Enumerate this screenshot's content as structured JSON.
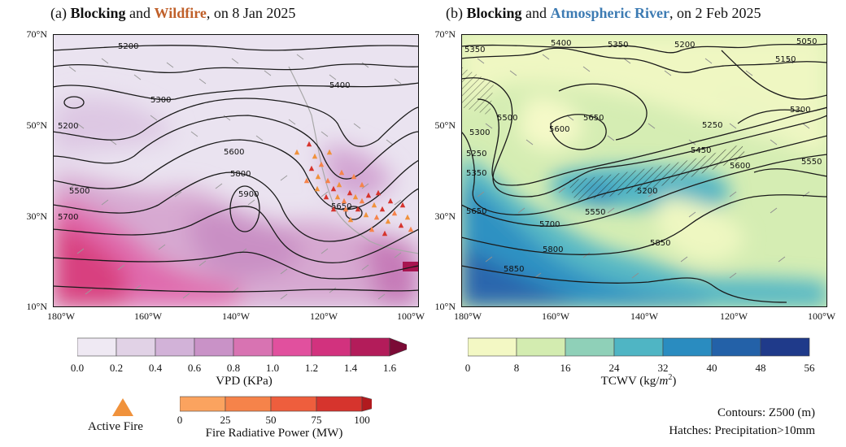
{
  "panel_a": {
    "prefix": "(a) ",
    "kw1": "Blocking",
    "mid": " and ",
    "kw2": "Wildfire",
    "suffix": ", on 8 Jan 2025",
    "kw2_color": "#c0602a"
  },
  "panel_b": {
    "prefix": "(b) ",
    "kw1": "Blocking",
    "mid": " and ",
    "kw2": "Atmospheric River",
    "suffix": ", on 2 Feb 2025",
    "kw2_color": "#3d7bb3"
  },
  "lat_labels": [
    "70°N",
    "50°N",
    "30°N",
    "10°N"
  ],
  "lon_labels": [
    "180°W",
    "160°W",
    "140°W",
    "120°W",
    "100°W"
  ],
  "contours_a": [
    "5200",
    "5300",
    "5400",
    "5500",
    "5600",
    "5700",
    "5800",
    "5900",
    "5200",
    "5650"
  ],
  "contours_b": [
    "5350",
    "5400",
    "5350",
    "5200",
    "5050",
    "5150",
    "5300",
    "5250",
    "5450",
    "5600",
    "5550",
    "5650",
    "5700",
    "5800",
    "5850",
    "5550",
    "5850",
    "5600",
    "5300",
    "5250",
    "5350",
    "5650",
    "5500",
    "5200"
  ],
  "vpd_bar": {
    "label": "VPD (KPa)",
    "ticks": [
      "0.0",
      "0.2",
      "0.4",
      "0.6",
      "0.8",
      "1.0",
      "1.2",
      "1.4",
      "1.6"
    ],
    "colors": [
      "#efe9f3",
      "#e1d2e6",
      "#d2b2d8",
      "#c992c7",
      "#d873b2",
      "#e1509e",
      "#d2327e",
      "#b31c5a",
      "#7b0b36"
    ]
  },
  "tcwv_bar": {
    "label": "TCWV (kg/",
    "label_unit": "m",
    "label_sup": "2",
    "label_end": ")",
    "ticks": [
      "0",
      "8",
      "16",
      "24",
      "32",
      "40",
      "48",
      "56"
    ],
    "colors": [
      "#f3f8c4",
      "#d3ecb0",
      "#8fd0b8",
      "#4fb5c4",
      "#2a8cc0",
      "#2361a8",
      "#1f3a8a"
    ]
  },
  "frp_bar": {
    "label": "Fire Radiative Power (MW)",
    "ticks": [
      "0",
      "25",
      "50",
      "75",
      "100"
    ],
    "colors": [
      "#fba35f",
      "#f6834a",
      "#ee5e3d",
      "#d6342d",
      "#b11a1e"
    ]
  },
  "legend": {
    "active_fire": "Active Fire",
    "fire_color": "#f0923c",
    "contours_note": "Contours: Z500 (m)",
    "hatches_note": "Hatches: Precipitation>10mm"
  }
}
